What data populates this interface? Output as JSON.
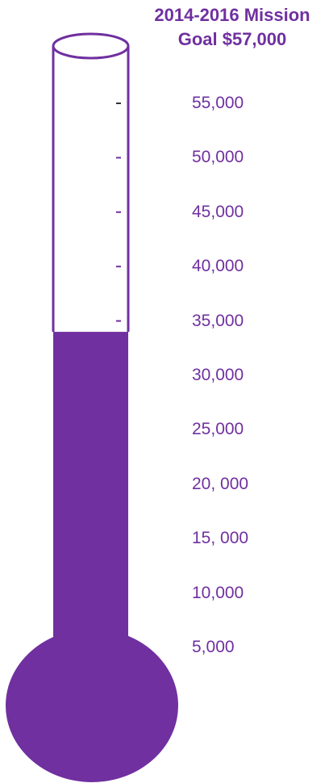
{
  "chart_data": {
    "type": "thermometer",
    "title_line1": "2014-2016 Mission",
    "title_line2": "Goal $57,000",
    "goal": 57000,
    "current_value": 34000,
    "scale_labels": [
      {
        "text": "55,000",
        "value": 55000
      },
      {
        "text": "50,000",
        "value": 50000
      },
      {
        "text": "45,000",
        "value": 45000
      },
      {
        "text": "40,000",
        "value": 40000
      },
      {
        "text": "35,000",
        "value": 35000
      },
      {
        "text": "30,000",
        "value": 30000
      },
      {
        "text": "25,000",
        "value": 25000
      },
      {
        "text": "20, 000",
        "value": 20000
      },
      {
        "text": "15, 000",
        "value": 15000
      },
      {
        "text": "10,000",
        "value": 10000
      },
      {
        "text": "5,000",
        "value": 5000
      }
    ],
    "tick_values": [
      55000,
      50000,
      45000,
      40000,
      35000
    ]
  },
  "colors": {
    "fill": "#7030a0",
    "text": "#7030a0",
    "tube_background": "#ffffff"
  }
}
